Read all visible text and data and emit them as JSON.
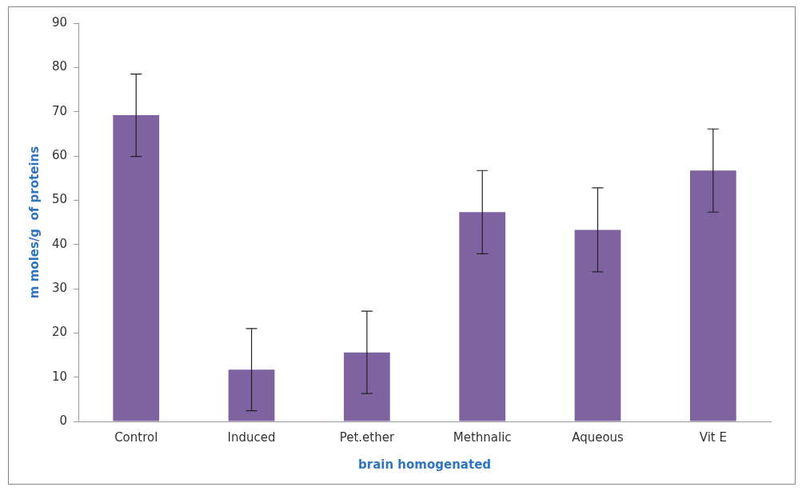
{
  "chart_data": {
    "type": "bar",
    "xlabel": "brain homogenated",
    "ylabel": "m moles/g  of proteins",
    "categories": [
      "Control",
      "Induced",
      "Pet.ether",
      "Methnalic",
      "Aqueous",
      "Vit E"
    ],
    "values": [
      69.2,
      11.7,
      15.6,
      47.3,
      43.3,
      56.7
    ],
    "errors": [
      9.3,
      9.3,
      9.3,
      9.4,
      9.5,
      9.4
    ],
    "color": "#7f62a0",
    "ylim": [
      0,
      90
    ],
    "yticks": [
      0,
      10,
      20,
      30,
      40,
      50,
      60,
      70,
      80,
      90
    ],
    "grid": false,
    "legend": false
  }
}
